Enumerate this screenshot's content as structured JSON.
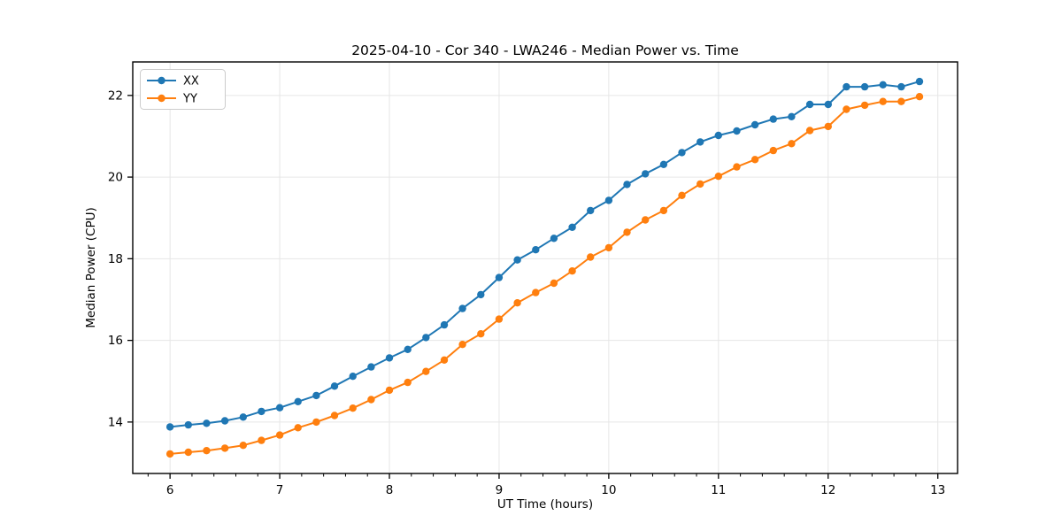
{
  "chart_data": {
    "type": "line",
    "title": "2025-04-10 - Cor 340 - LWA246 - Median Power vs. Time",
    "xlabel": "UT Time (hours)",
    "ylabel": "Median Power (CPU)",
    "xlim": [
      5.66,
      13.18
    ],
    "ylim": [
      12.74,
      22.82
    ],
    "x_ticks": [
      6,
      7,
      8,
      9,
      10,
      11,
      12,
      13
    ],
    "y_ticks": [
      14,
      16,
      18,
      20,
      22
    ],
    "x_minor_step": 0.2,
    "grid": true,
    "legend_position": "upper left",
    "colors": {
      "grid": "#e6e6e6",
      "spine": "#000000",
      "legend_border": "#cccccc",
      "background": "#ffffff"
    },
    "x": [
      6.0,
      6.1667,
      6.3333,
      6.5,
      6.6667,
      6.8333,
      7.0,
      7.1667,
      7.3333,
      7.5,
      7.6667,
      7.8333,
      8.0,
      8.1667,
      8.3333,
      8.5,
      8.6667,
      8.8333,
      9.0,
      9.1667,
      9.3333,
      9.5,
      9.6667,
      9.8333,
      10.0,
      10.1667,
      10.3333,
      10.5,
      10.6667,
      10.8333,
      11.0,
      11.1667,
      11.3333,
      11.5,
      11.6667,
      11.8333,
      12.0,
      12.1667,
      12.3333,
      12.5,
      12.6667,
      12.8333
    ],
    "series": [
      {
        "name": "XX",
        "color": "#1f77b4",
        "values": [
          13.88,
          13.93,
          13.97,
          14.03,
          14.12,
          14.26,
          14.35,
          14.5,
          14.65,
          14.88,
          15.12,
          15.35,
          15.57,
          15.78,
          16.07,
          16.38,
          16.78,
          17.12,
          17.54,
          17.97,
          18.22,
          18.5,
          18.77,
          19.18,
          19.43,
          19.82,
          20.08,
          20.31,
          20.6,
          20.86,
          21.02,
          21.13,
          21.28,
          21.42,
          21.48,
          21.78,
          21.78,
          22.21,
          22.21,
          22.26,
          22.21,
          22.34
        ]
      },
      {
        "name": "YY",
        "color": "#ff7f0e",
        "values": [
          13.22,
          13.26,
          13.3,
          13.36,
          13.43,
          13.55,
          13.68,
          13.86,
          14.0,
          14.16,
          14.34,
          14.55,
          14.78,
          14.97,
          15.24,
          15.52,
          15.9,
          16.16,
          16.52,
          16.92,
          17.17,
          17.4,
          17.7,
          18.04,
          18.27,
          18.65,
          18.95,
          19.18,
          19.55,
          19.83,
          20.02,
          20.25,
          20.43,
          20.65,
          20.82,
          21.14,
          21.24,
          21.66,
          21.76,
          21.85,
          21.85,
          21.97
        ]
      }
    ]
  }
}
